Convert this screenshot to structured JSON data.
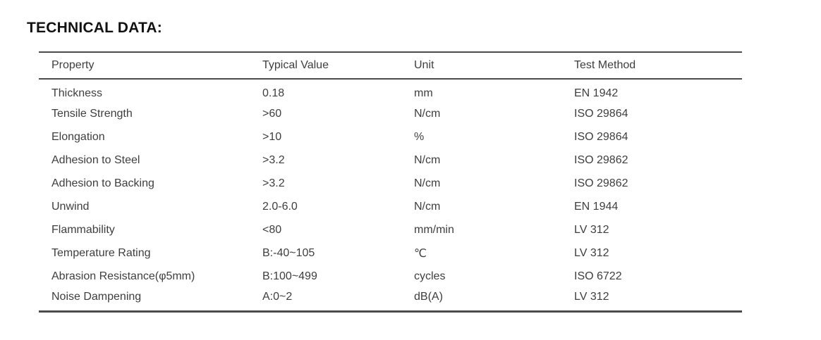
{
  "page": {
    "title": "TECHNICAL DATA:"
  },
  "colors": {
    "text": "#3e3e3e",
    "heading": "#121212",
    "rule": "#4a4a4a",
    "background": "#ffffff"
  },
  "table": {
    "columns": [
      "Property",
      "Typical Value",
      "Unit",
      "Test Method"
    ],
    "rows": [
      {
        "property": "Thickness",
        "typical_value": "0.18",
        "unit": "mm",
        "test_method": "EN 1942"
      },
      {
        "property": "Tensile Strength",
        "typical_value": ">60",
        "unit": "N/cm",
        "test_method": "ISO 29864"
      },
      {
        "property": "Elongation",
        "typical_value": ">10",
        "unit": "%",
        "test_method": "ISO 29864"
      },
      {
        "property": "Adhesion to Steel",
        "typical_value": ">3.2",
        "unit": "N/cm",
        "test_method": "ISO 29862"
      },
      {
        "property": "Adhesion to Backing",
        "typical_value": ">3.2",
        "unit": "N/cm",
        "test_method": "ISO 29862"
      },
      {
        "property": "Unwind",
        "typical_value": "2.0-6.0",
        "unit": "N/cm",
        "test_method": "EN 1944"
      },
      {
        "property": "Flammability",
        "typical_value": "<80",
        "unit": "mm/min",
        "test_method": "LV 312"
      },
      {
        "property": "Temperature Rating",
        "typical_value": "B:-40~105",
        "unit": "℃",
        "test_method": "LV 312"
      },
      {
        "property": "Abrasion Resistance(φ5mm)",
        "typical_value": "B:100~499",
        "unit": "cycles",
        "test_method": "ISO 6722"
      },
      {
        "property": "Noise Dampening",
        "typical_value": "A:0~2",
        "unit": "dB(A)",
        "test_method": "LV 312"
      }
    ]
  }
}
